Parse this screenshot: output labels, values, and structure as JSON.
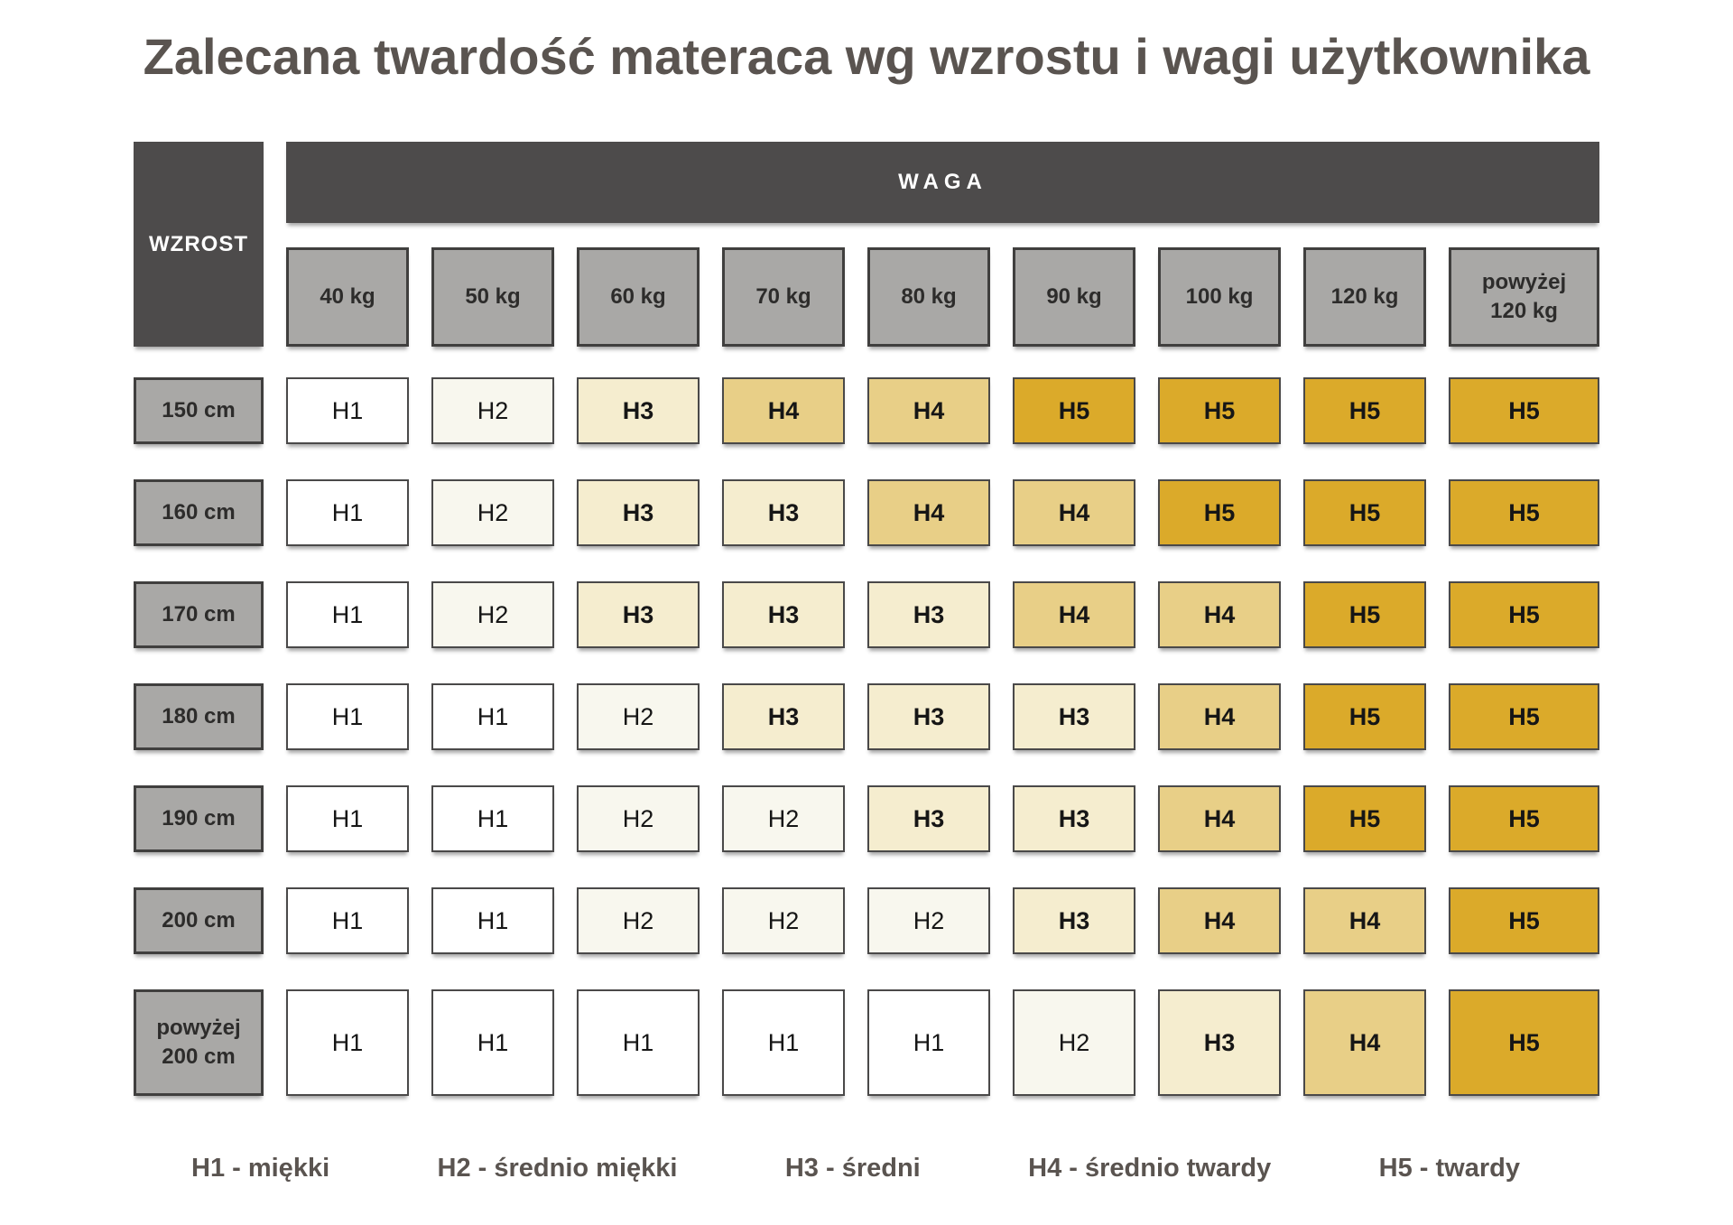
{
  "title": "Zalecana twardość materaca wg wzrostu i wagi użytkownika",
  "colors": {
    "header_dark": "#4d4b4b",
    "header_gray": "#a9a8a6",
    "cell_border": "#4a4949",
    "title_text": "#5a5450",
    "H1": "#ffffff",
    "H2": "#f8f7ee",
    "H3": "#f5edcf",
    "H4": "#e8cf87",
    "H5": "#dbaa2a"
  },
  "chart_data": {
    "type": "heatmap",
    "title": "Zalecana twardość materaca wg wzrostu i wagi użytkownika",
    "corner_label": "WZROST",
    "col_group_label": "WAGA",
    "columns": [
      "40 kg",
      "50 kg",
      "60 kg",
      "70 kg",
      "80 kg",
      "90 kg",
      "100 kg",
      "120 kg",
      "powyżej 120 kg"
    ],
    "rows": [
      "150 cm",
      "160 cm",
      "170 cm",
      "180 cm",
      "190 cm",
      "200 cm",
      "powyżej 200 cm"
    ],
    "values": [
      [
        "H1",
        "H2",
        "H3",
        "H4",
        "H4",
        "H5",
        "H5",
        "H5",
        "H5"
      ],
      [
        "H1",
        "H2",
        "H3",
        "H3",
        "H4",
        "H4",
        "H5",
        "H5",
        "H5"
      ],
      [
        "H1",
        "H2",
        "H3",
        "H3",
        "H3",
        "H4",
        "H4",
        "H5",
        "H5"
      ],
      [
        "H1",
        "H1",
        "H2",
        "H3",
        "H3",
        "H3",
        "H4",
        "H5",
        "H5"
      ],
      [
        "H1",
        "H1",
        "H2",
        "H2",
        "H3",
        "H3",
        "H4",
        "H5",
        "H5"
      ],
      [
        "H1",
        "H1",
        "H2",
        "H2",
        "H2",
        "H3",
        "H4",
        "H4",
        "H5"
      ],
      [
        "H1",
        "H1",
        "H1",
        "H1",
        "H1",
        "H2",
        "H3",
        "H4",
        "H5"
      ]
    ],
    "legend": [
      "H1 - miękki",
      "H2 - średnio miękki",
      "H3 - średni",
      "H4 - średnio twardy",
      "H5 - twardy"
    ],
    "legend_position": "bottom",
    "grid": false
  }
}
